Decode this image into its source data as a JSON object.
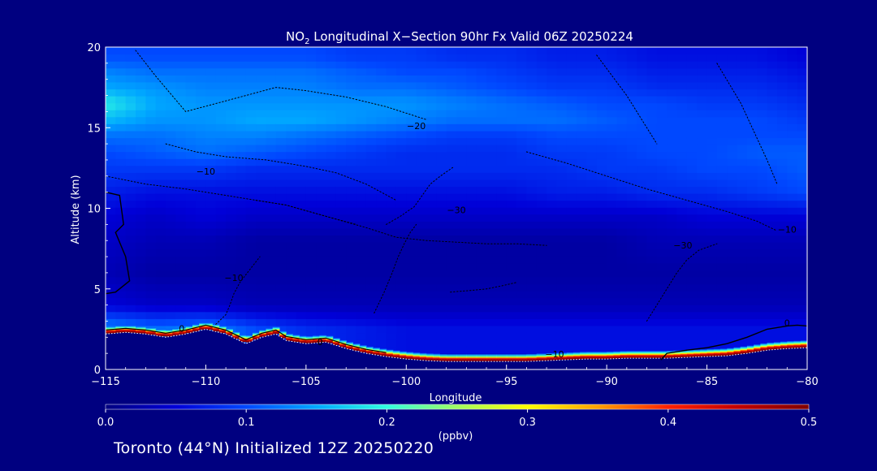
{
  "chart_data": {
    "type": "heatmap",
    "title_main": "NO",
    "title_sub": "2",
    "title_rest": " Longitudinal X−Section 90hr  Fx Valid 06Z 20250224",
    "xlabel": "Longitude",
    "ylabel": "Altitude (km)",
    "xlim": [
      -115,
      -80
    ],
    "ylim": [
      0,
      20
    ],
    "x_ticks": [
      -115,
      -110,
      -105,
      -100,
      -95,
      -90,
      -85,
      -80
    ],
    "x_tick_labels": [
      "−115",
      "−110",
      "−105",
      "−100",
      "−95",
      "−90",
      "−85",
      "−80"
    ],
    "y_ticks": [
      0,
      5,
      10,
      15,
      20
    ],
    "y_tick_labels": [
      "0",
      "5",
      "10",
      "15",
      "20"
    ],
    "colorbar": {
      "min": 0.0,
      "max": 0.5,
      "ticks": [
        0.0,
        0.1,
        0.2,
        0.3,
        0.4,
        0.5
      ],
      "tick_labels": [
        "0.0",
        "0.1",
        "0.2",
        "0.3",
        "0.4",
        "0.5"
      ],
      "unit": "(ppbv)",
      "colors": [
        "#000080",
        "#0000d8",
        "#0048ff",
        "#00a8ff",
        "#30ffe0",
        "#a0ff60",
        "#ffff00",
        "#ffa000",
        "#ff2000",
        "#c00000",
        "#800000"
      ]
    },
    "terrain_profile": {
      "x": [
        -115,
        -114,
        -113,
        -112,
        -111,
        -110,
        -109,
        -108.5,
        -108,
        -107.2,
        -106.5,
        -106,
        -105,
        -104,
        -103,
        -102,
        -101,
        -100,
        -99,
        -98,
        -97,
        -96,
        -95,
        -94,
        -93,
        -92,
        -91,
        -90,
        -89,
        -88,
        -87,
        -86,
        -85,
        -84,
        -83,
        -82,
        -81,
        -80
      ],
      "y": [
        2.2,
        2.3,
        2.2,
        2.0,
        2.2,
        2.5,
        2.2,
        1.9,
        1.6,
        2.0,
        2.2,
        1.8,
        1.6,
        1.7,
        1.3,
        1.0,
        0.8,
        0.65,
        0.55,
        0.5,
        0.5,
        0.5,
        0.5,
        0.5,
        0.55,
        0.6,
        0.65,
        0.65,
        0.7,
        0.7,
        0.7,
        0.75,
        0.8,
        0.85,
        1.0,
        1.2,
        1.3,
        1.35
      ]
    },
    "no2_field": {
      "x": [
        -115,
        -112.5,
        -110,
        -107.5,
        -105,
        -102.5,
        -100,
        -97.5,
        -95,
        -92.5,
        -90,
        -87.5,
        -85,
        -82.5,
        -80
      ],
      "y": [
        2.5,
        4,
        6,
        8,
        9.5,
        11,
        12.5,
        13.5,
        14.5,
        15.5,
        16.5,
        17.5,
        18.5,
        19.5
      ],
      "values": [
        [
          0.14,
          0.12,
          0.13,
          0.1,
          0.08,
          0.07,
          0.06,
          0.06,
          0.06,
          0.06,
          0.06,
          0.06,
          0.06,
          0.06,
          0.06
        ],
        [
          0.05,
          0.04,
          0.04,
          0.03,
          0.03,
          0.03,
          0.03,
          0.03,
          0.03,
          0.03,
          0.03,
          0.03,
          0.03,
          0.03,
          0.03
        ],
        [
          0.03,
          0.02,
          0.02,
          0.02,
          0.02,
          0.02,
          0.02,
          0.02,
          0.02,
          0.02,
          0.02,
          0.02,
          0.02,
          0.02,
          0.02
        ],
        [
          0.04,
          0.03,
          0.03,
          0.02,
          0.02,
          0.02,
          0.02,
          0.02,
          0.02,
          0.02,
          0.02,
          0.03,
          0.03,
          0.03,
          0.03
        ],
        [
          0.05,
          0.04,
          0.05,
          0.04,
          0.04,
          0.04,
          0.04,
          0.04,
          0.04,
          0.04,
          0.04,
          0.04,
          0.05,
          0.05,
          0.05
        ],
        [
          0.07,
          0.06,
          0.06,
          0.06,
          0.06,
          0.06,
          0.06,
          0.06,
          0.06,
          0.07,
          0.07,
          0.08,
          0.08,
          0.09,
          0.1
        ],
        [
          0.09,
          0.09,
          0.09,
          0.08,
          0.08,
          0.08,
          0.08,
          0.08,
          0.08,
          0.08,
          0.09,
          0.09,
          0.1,
          0.1,
          0.11
        ],
        [
          0.1,
          0.11,
          0.12,
          0.11,
          0.1,
          0.09,
          0.08,
          0.08,
          0.08,
          0.09,
          0.09,
          0.1,
          0.1,
          0.11,
          0.11
        ],
        [
          0.12,
          0.12,
          0.13,
          0.13,
          0.12,
          0.11,
          0.1,
          0.09,
          0.09,
          0.1,
          0.1,
          0.1,
          0.1,
          0.1,
          0.1
        ],
        [
          0.16,
          0.14,
          0.14,
          0.15,
          0.15,
          0.14,
          0.13,
          0.12,
          0.12,
          0.12,
          0.11,
          0.1,
          0.1,
          0.1,
          0.09
        ],
        [
          0.19,
          0.15,
          0.14,
          0.14,
          0.14,
          0.14,
          0.14,
          0.13,
          0.12,
          0.11,
          0.1,
          0.1,
          0.09,
          0.09,
          0.08
        ],
        [
          0.15,
          0.14,
          0.13,
          0.13,
          0.13,
          0.12,
          0.12,
          0.11,
          0.1,
          0.09,
          0.09,
          0.08,
          0.08,
          0.08,
          0.07
        ],
        [
          0.13,
          0.12,
          0.12,
          0.12,
          0.12,
          0.11,
          0.1,
          0.1,
          0.09,
          0.08,
          0.08,
          0.07,
          0.07,
          0.07,
          0.06
        ],
        [
          0.1,
          0.1,
          0.1,
          0.1,
          0.1,
          0.09,
          0.09,
          0.08,
          0.08,
          0.07,
          0.07,
          0.06,
          0.06,
          0.06,
          0.05
        ]
      ]
    },
    "surface_layer": {
      "x": [
        -115,
        -112,
        -110,
        -108,
        -106,
        -104,
        -102,
        -100,
        -98,
        -95,
        -92,
        -90,
        -88,
        -86,
        -84,
        -82,
        -80
      ],
      "values": [
        0.45,
        0.5,
        0.5,
        0.45,
        0.45,
        0.45,
        0.4,
        0.35,
        0.3,
        0.3,
        0.35,
        0.4,
        0.45,
        0.5,
        0.5,
        0.5,
        0.5
      ]
    },
    "contour_labels": [
      {
        "text": "−20",
        "x": -99.5,
        "y": 14.9
      },
      {
        "text": "−10",
        "x": -110,
        "y": 12.1
      },
      {
        "text": "−30",
        "x": -97.5,
        "y": 9.7
      },
      {
        "text": "−30",
        "x": -86.2,
        "y": 7.5
      },
      {
        "text": "−10",
        "x": -81,
        "y": 8.5
      },
      {
        "text": "−10",
        "x": -108.6,
        "y": 5.5
      },
      {
        "text": "0",
        "x": -115.3,
        "y": 4.9
      },
      {
        "text": "−10",
        "x": -92.6,
        "y": 0.75
      },
      {
        "text": "0",
        "x": -81,
        "y": 2.7
      },
      {
        "text": "0",
        "x": -111.2,
        "y": 2.35
      },
      {
        "text": "0",
        "x": -104.3,
        "y": 1.5
      }
    ],
    "zero_contour_right": {
      "x": [
        -87.3,
        -87,
        -86,
        -85,
        -84,
        -83,
        -82,
        -81,
        -80.5,
        -80
      ],
      "y": [
        0.6,
        1.0,
        1.2,
        1.35,
        1.6,
        2.0,
        2.5,
        2.7,
        2.75,
        2.7
      ]
    },
    "zero_contour_left": {
      "x": [
        -115,
        -114.3,
        -114.1,
        -114.5,
        -114.0,
        -113.8,
        -114.5,
        -115
      ],
      "y": [
        11.0,
        10.8,
        9.0,
        8.5,
        7.0,
        5.5,
        4.8,
        4.7
      ]
    },
    "dotted_contours": [
      {
        "x": [
          -113.5,
          -112.5,
          -111,
          -109.5,
          -108,
          -106.5,
          -105,
          -103,
          -101,
          -99
        ],
        "y": [
          19.8,
          18.2,
          16.0,
          16.5,
          17.0,
          17.5,
          17.3,
          16.9,
          16.3,
          15.5
        ]
      },
      {
        "x": [
          -112,
          -110.5,
          -109,
          -107,
          -105,
          -103.5,
          -102,
          -100.5
        ],
        "y": [
          14.0,
          13.5,
          13.2,
          13.0,
          12.6,
          12.2,
          11.5,
          10.5
        ]
      },
      {
        "x": [
          -115,
          -113,
          -111,
          -109,
          -107.5,
          -106,
          -104,
          -102.5
        ],
        "y": [
          12.0,
          11.5,
          11.2,
          10.8,
          10.5,
          10.2,
          9.5,
          9.0
        ]
      },
      {
        "x": [
          -101,
          -100.3,
          -99.6,
          -99.2,
          -98.8,
          -98.3,
          -97.6
        ],
        "y": [
          9.0,
          9.5,
          10.1,
          10.8,
          11.5,
          12.0,
          12.6
        ]
      },
      {
        "x": [
          -94,
          -92,
          -90,
          -88,
          -86,
          -84,
          -82.5,
          -81.5
        ],
        "y": [
          13.5,
          12.8,
          12.0,
          11.2,
          10.5,
          9.8,
          9.2,
          8.6
        ]
      },
      {
        "x": [
          -88,
          -87.5,
          -87,
          -86.5,
          -86,
          -85.4,
          -84.5
        ],
        "y": [
          3.0,
          4.0,
          5.0,
          6.0,
          6.8,
          7.4,
          7.8
        ]
      },
      {
        "x": [
          -109.5,
          -109,
          -108.8,
          -108.6,
          -108.3,
          -107.8,
          -107.3
        ],
        "y": [
          2.8,
          3.4,
          4.0,
          4.7,
          5.4,
          6.2,
          7.0
        ]
      },
      {
        "x": [
          -101.6,
          -101.1,
          -100.7,
          -100.4,
          -100.1,
          -99.8,
          -99.5
        ],
        "y": [
          3.5,
          4.8,
          6.0,
          7.0,
          7.8,
          8.5,
          9.0
        ]
      },
      {
        "x": [
          -97.8,
          -96.8,
          -96.0,
          -95.2,
          -94.5
        ],
        "y": [
          4.8,
          4.9,
          5.0,
          5.2,
          5.4
        ]
      },
      {
        "x": [
          -90.5,
          -89.0,
          -87.5
        ],
        "y": [
          19.5,
          17.0,
          14.0
        ]
      },
      {
        "x": [
          -84.5,
          -83.3,
          -82.0,
          -81.5
        ],
        "y": [
          19.0,
          16.5,
          13.0,
          11.5
        ]
      },
      {
        "x": [
          -107.5,
          -106.0,
          -104.0,
          -102.0,
          -100.5,
          -99.0,
          -97.5,
          -96.0,
          -94.5,
          -93.0
        ],
        "y": [
          10.5,
          10.2,
          9.5,
          8.8,
          8.2,
          8.0,
          7.9,
          7.8,
          7.8,
          7.7
        ]
      }
    ],
    "footer": "Toronto (44°N) Initialized 12Z 20250220"
  }
}
